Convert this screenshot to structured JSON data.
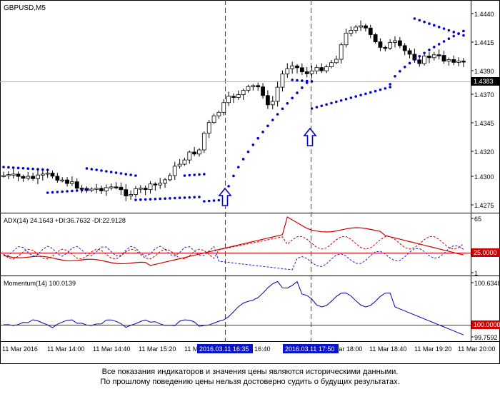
{
  "chart_title": "GBPUSD,M5",
  "price_axis": {
    "ticks": [
      "1.4440",
      "1.4415",
      "1.4390",
      "1.4370",
      "1.4345",
      "1.4320",
      "1.4300",
      "1.4275"
    ],
    "current_price": "1.4383"
  },
  "adx_panel": {
    "label": "ADX(14) 24.1643 +DI:36.7632 -DI:22.9128",
    "ticks": [
      "65",
      "25.0000",
      "1"
    ],
    "level": "25.0000"
  },
  "momentum_panel": {
    "label": "Momentum(14) 100.0139",
    "ticks": [
      "100.6348",
      "100.0000",
      "99.7592"
    ],
    "level": "100.0000"
  },
  "time_axis": {
    "labels": [
      "11 Mar 2016",
      "11 Mar 14:00",
      "11 Mar 14:40",
      "11 Mar 15:20",
      "11 Mar 1",
      "16:40",
      "17:50",
      "11 Mar 18:00",
      "11 Mar 18:40",
      "11 Mar 19:20",
      "11 Mar 20:00"
    ],
    "highlight_1": "2016.03.11 16:35",
    "highlight_2": "2016.03.11 17:50"
  },
  "signals": {
    "arrow_icon": "up-arrow-icon",
    "count": "2"
  },
  "colors": {
    "psar": "#0000cc",
    "adx_main": "#cc0000",
    "di_lines": "#cc0000",
    "momentum": "#0000aa",
    "level_line": "#cc0000",
    "signal_arrow": "#0000cc",
    "highlight_bg": "#0a14c8"
  },
  "disclaimer": {
    "line1": "Все показания индикаторов и значения цены являются историческими данными.",
    "line2": "По прошлому поведению цены нельзя достоверно судить о будущих результатах."
  }
}
